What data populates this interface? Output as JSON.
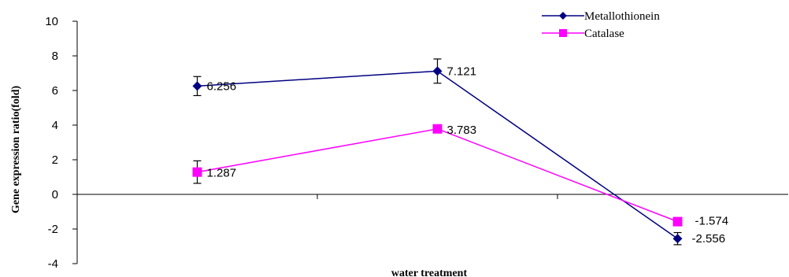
{
  "chart_data": {
    "type": "line",
    "title": "",
    "xlabel": "water treatment",
    "ylabel": "Gene expression ratio(fold)",
    "ylim": [
      -4,
      10
    ],
    "yticks": [
      -4,
      -2,
      0,
      2,
      4,
      6,
      8,
      10
    ],
    "ytick_labels": [
      "-4",
      "-2",
      "0",
      "2",
      "4",
      "6",
      "8",
      "10"
    ],
    "categories": [
      "",
      "",
      ""
    ],
    "grid": false,
    "legend_position": "top-right",
    "series": [
      {
        "name": "Metallothionein",
        "color": "#000080",
        "marker": "diamond",
        "values": [
          6.256,
          7.121,
          -2.556
        ],
        "errors": [
          0.55,
          0.7,
          0.35
        ],
        "labels": [
          "6.256",
          "7.121",
          "-2.556"
        ]
      },
      {
        "name": "Catalase",
        "color": "#ff00ff",
        "marker": "square",
        "values": [
          1.287,
          3.783,
          -1.574
        ],
        "errors": [
          0.65,
          0.0,
          0.0
        ],
        "labels": [
          "1.287",
          "3.783",
          "-1.574"
        ]
      }
    ]
  }
}
